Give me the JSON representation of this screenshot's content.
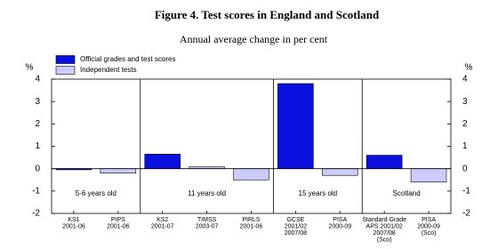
{
  "chart_data": {
    "type": "bar",
    "title": "Figure 4. Test scores in England and Scotland",
    "subtitle": "Annual average change in per cent",
    "y_label": "%",
    "groups": [
      {
        "label": "5-6 years old",
        "categories": [
          [
            "KS1",
            "2001-06"
          ],
          [
            "PIPS",
            "2001-06"
          ]
        ]
      },
      {
        "label": "11 years old",
        "categories": [
          [
            "KS2",
            "2001-07"
          ],
          [
            "TIMSS",
            "2003-07"
          ],
          [
            "PIRLS",
            "2001-06"
          ]
        ]
      },
      {
        "label": "15 years old",
        "categories": [
          [
            "GCSE",
            "2001/02",
            "2007/08"
          ],
          [
            "PISA",
            "2000-09"
          ]
        ]
      },
      {
        "label": "Scotland",
        "categories": [
          [
            "Standard Grade",
            "APS 2001/02",
            "2007/08",
            "(Sco)"
          ],
          [
            "PISA",
            "2000-09",
            "(Sco)"
          ]
        ]
      }
    ],
    "series": [
      {
        "name": "Official grades and test scores",
        "color": "#0a10e0",
        "values": [
          -0.05,
          null,
          0.65,
          null,
          null,
          3.8,
          null,
          0.6,
          null
        ]
      },
      {
        "name": "Independent tests",
        "color": "#ccccfa",
        "values": [
          null,
          -0.2,
          null,
          0.08,
          -0.5,
          null,
          -0.3,
          null,
          -0.6
        ]
      }
    ],
    "ylim": [
      -2,
      4
    ],
    "yticks": [
      -2,
      -1,
      0,
      1,
      2,
      3,
      4
    ]
  }
}
